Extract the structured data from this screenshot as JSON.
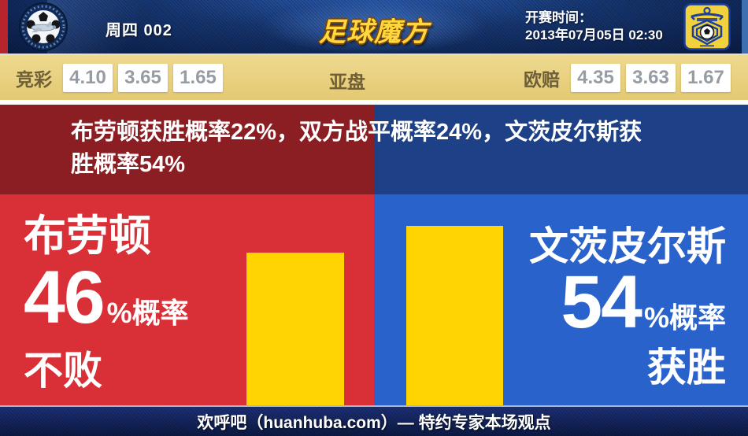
{
  "header": {
    "match_label": "周四 002",
    "site_logo": "足球魔方",
    "kickoff_label": "开赛时间：",
    "kickoff_time": "2013年07月05日 02:30"
  },
  "odds_bar": {
    "jingcai_label": "竞彩",
    "jingcai_odds": [
      "4.10",
      "3.65",
      "1.65"
    ],
    "yapan_label": "亚盘",
    "oupei_label": "欧赔",
    "oupei_odds": [
      "4.35",
      "3.63",
      "1.67"
    ]
  },
  "summary": {
    "line1": "布劳顿获胜概率22%，双方战平概率24%，文茨皮尔斯获",
    "line2": "胜概率54%",
    "home_win_prob": "22%",
    "draw_prob": "24%",
    "away_win_prob": "54%"
  },
  "home": {
    "name": "布劳顿",
    "probability": "46",
    "suffix": "%概率",
    "outcome": "不败"
  },
  "away": {
    "name": "文茨皮尔斯",
    "probability": "54",
    "suffix": "%概率",
    "outcome": "获胜"
  },
  "footer": {
    "text": "欢呼吧（huanhuba.com）— 特约专家本场观点"
  },
  "colors": {
    "main_red": "#d93038",
    "main_blue": "#2a62cc",
    "summary_red": "#8b1e23",
    "summary_blue": "#1e4086",
    "bar_yellow": "#ffd400",
    "odds_gold": "#e6cd80",
    "header_navy": "#0a1c44"
  },
  "chart_data": {
    "type": "bar",
    "categories": [
      "布劳顿 不败",
      "文茨皮尔斯 获胜"
    ],
    "values": [
      46,
      54
    ],
    "unit": "%",
    "bar_color": "#ffd400",
    "ylim": [
      0,
      63.5
    ]
  }
}
